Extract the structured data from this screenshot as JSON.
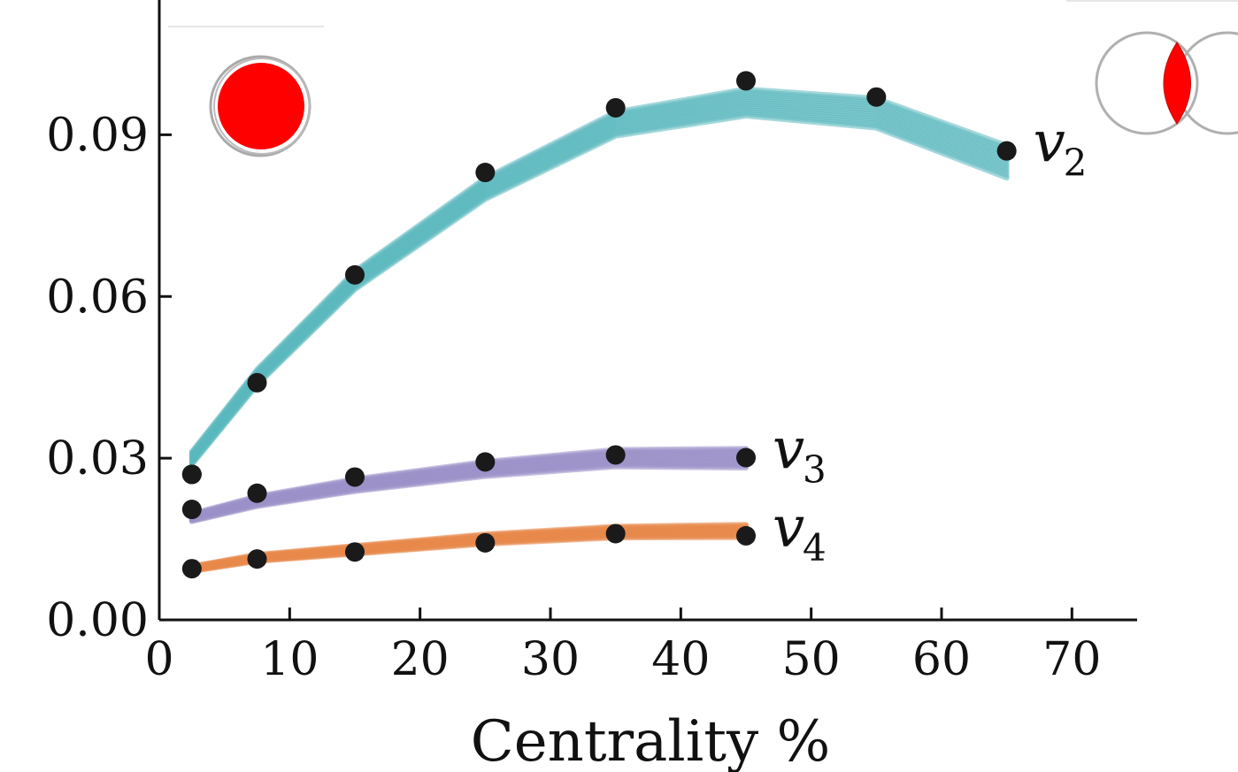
{
  "chart_data": {
    "type": "line",
    "xlabel": "Centrality %",
    "ylabel": "",
    "xlim": [
      0,
      75
    ],
    "ylim": [
      0,
      0.115
    ],
    "x_ticks": [
      0,
      10,
      20,
      30,
      40,
      50,
      60,
      70
    ],
    "x_tick_labels": [
      "0",
      "10",
      "20",
      "30",
      "40",
      "50",
      "60",
      "70"
    ],
    "y_ticks": [
      0.0,
      0.03,
      0.06,
      0.09
    ],
    "y_tick_labels": [
      "0.00",
      "0.03",
      "0.06",
      "0.09"
    ],
    "grid": false,
    "series": [
      {
        "name": "v",
        "subscript": "2",
        "color": "#5ab8bd",
        "band_width": 0.003,
        "model_x": [
          2.5,
          7.5,
          15,
          25,
          35,
          45,
          55,
          65
        ],
        "model_y": [
          0.03,
          0.045,
          0.063,
          0.08,
          0.092,
          0.096,
          0.094,
          0.085
        ],
        "data_x": [
          2.5,
          7.5,
          15,
          25,
          35,
          45,
          55,
          65
        ],
        "data_y": [
          0.027,
          0.044,
          0.064,
          0.083,
          0.095,
          0.1,
          0.097,
          0.087
        ]
      },
      {
        "name": "v",
        "subscript": "3",
        "color": "#9b8fc8",
        "band_width": 0.0018,
        "model_x": [
          2.5,
          7.5,
          15,
          25,
          35,
          45
        ],
        "model_y": [
          0.019,
          0.022,
          0.025,
          0.028,
          0.03,
          0.03
        ],
        "data_x": [
          2.5,
          2.5,
          7.5,
          15,
          25,
          35,
          45
        ],
        "data_y": [
          0.027,
          0.0205,
          0.0235,
          0.0265,
          0.0293,
          0.0306,
          0.0301
        ]
      },
      {
        "name": "v",
        "subscript": "4",
        "color": "#e8894a",
        "band_width": 0.0012,
        "model_x": [
          2.5,
          7.5,
          15,
          25,
          35,
          45
        ],
        "model_y": [
          0.0095,
          0.0115,
          0.013,
          0.015,
          0.0163,
          0.0165
        ],
        "data_x": [
          2.5,
          7.5,
          15,
          25,
          35,
          45
        ],
        "data_y": [
          0.0095,
          0.0113,
          0.0126,
          0.0143,
          0.016,
          0.0156
        ]
      }
    ]
  },
  "insets": {
    "central_overlap_color": "#ff0000",
    "peripheral_overlap_color": "#ff0000",
    "nucleus_outline_color": "#999999"
  }
}
